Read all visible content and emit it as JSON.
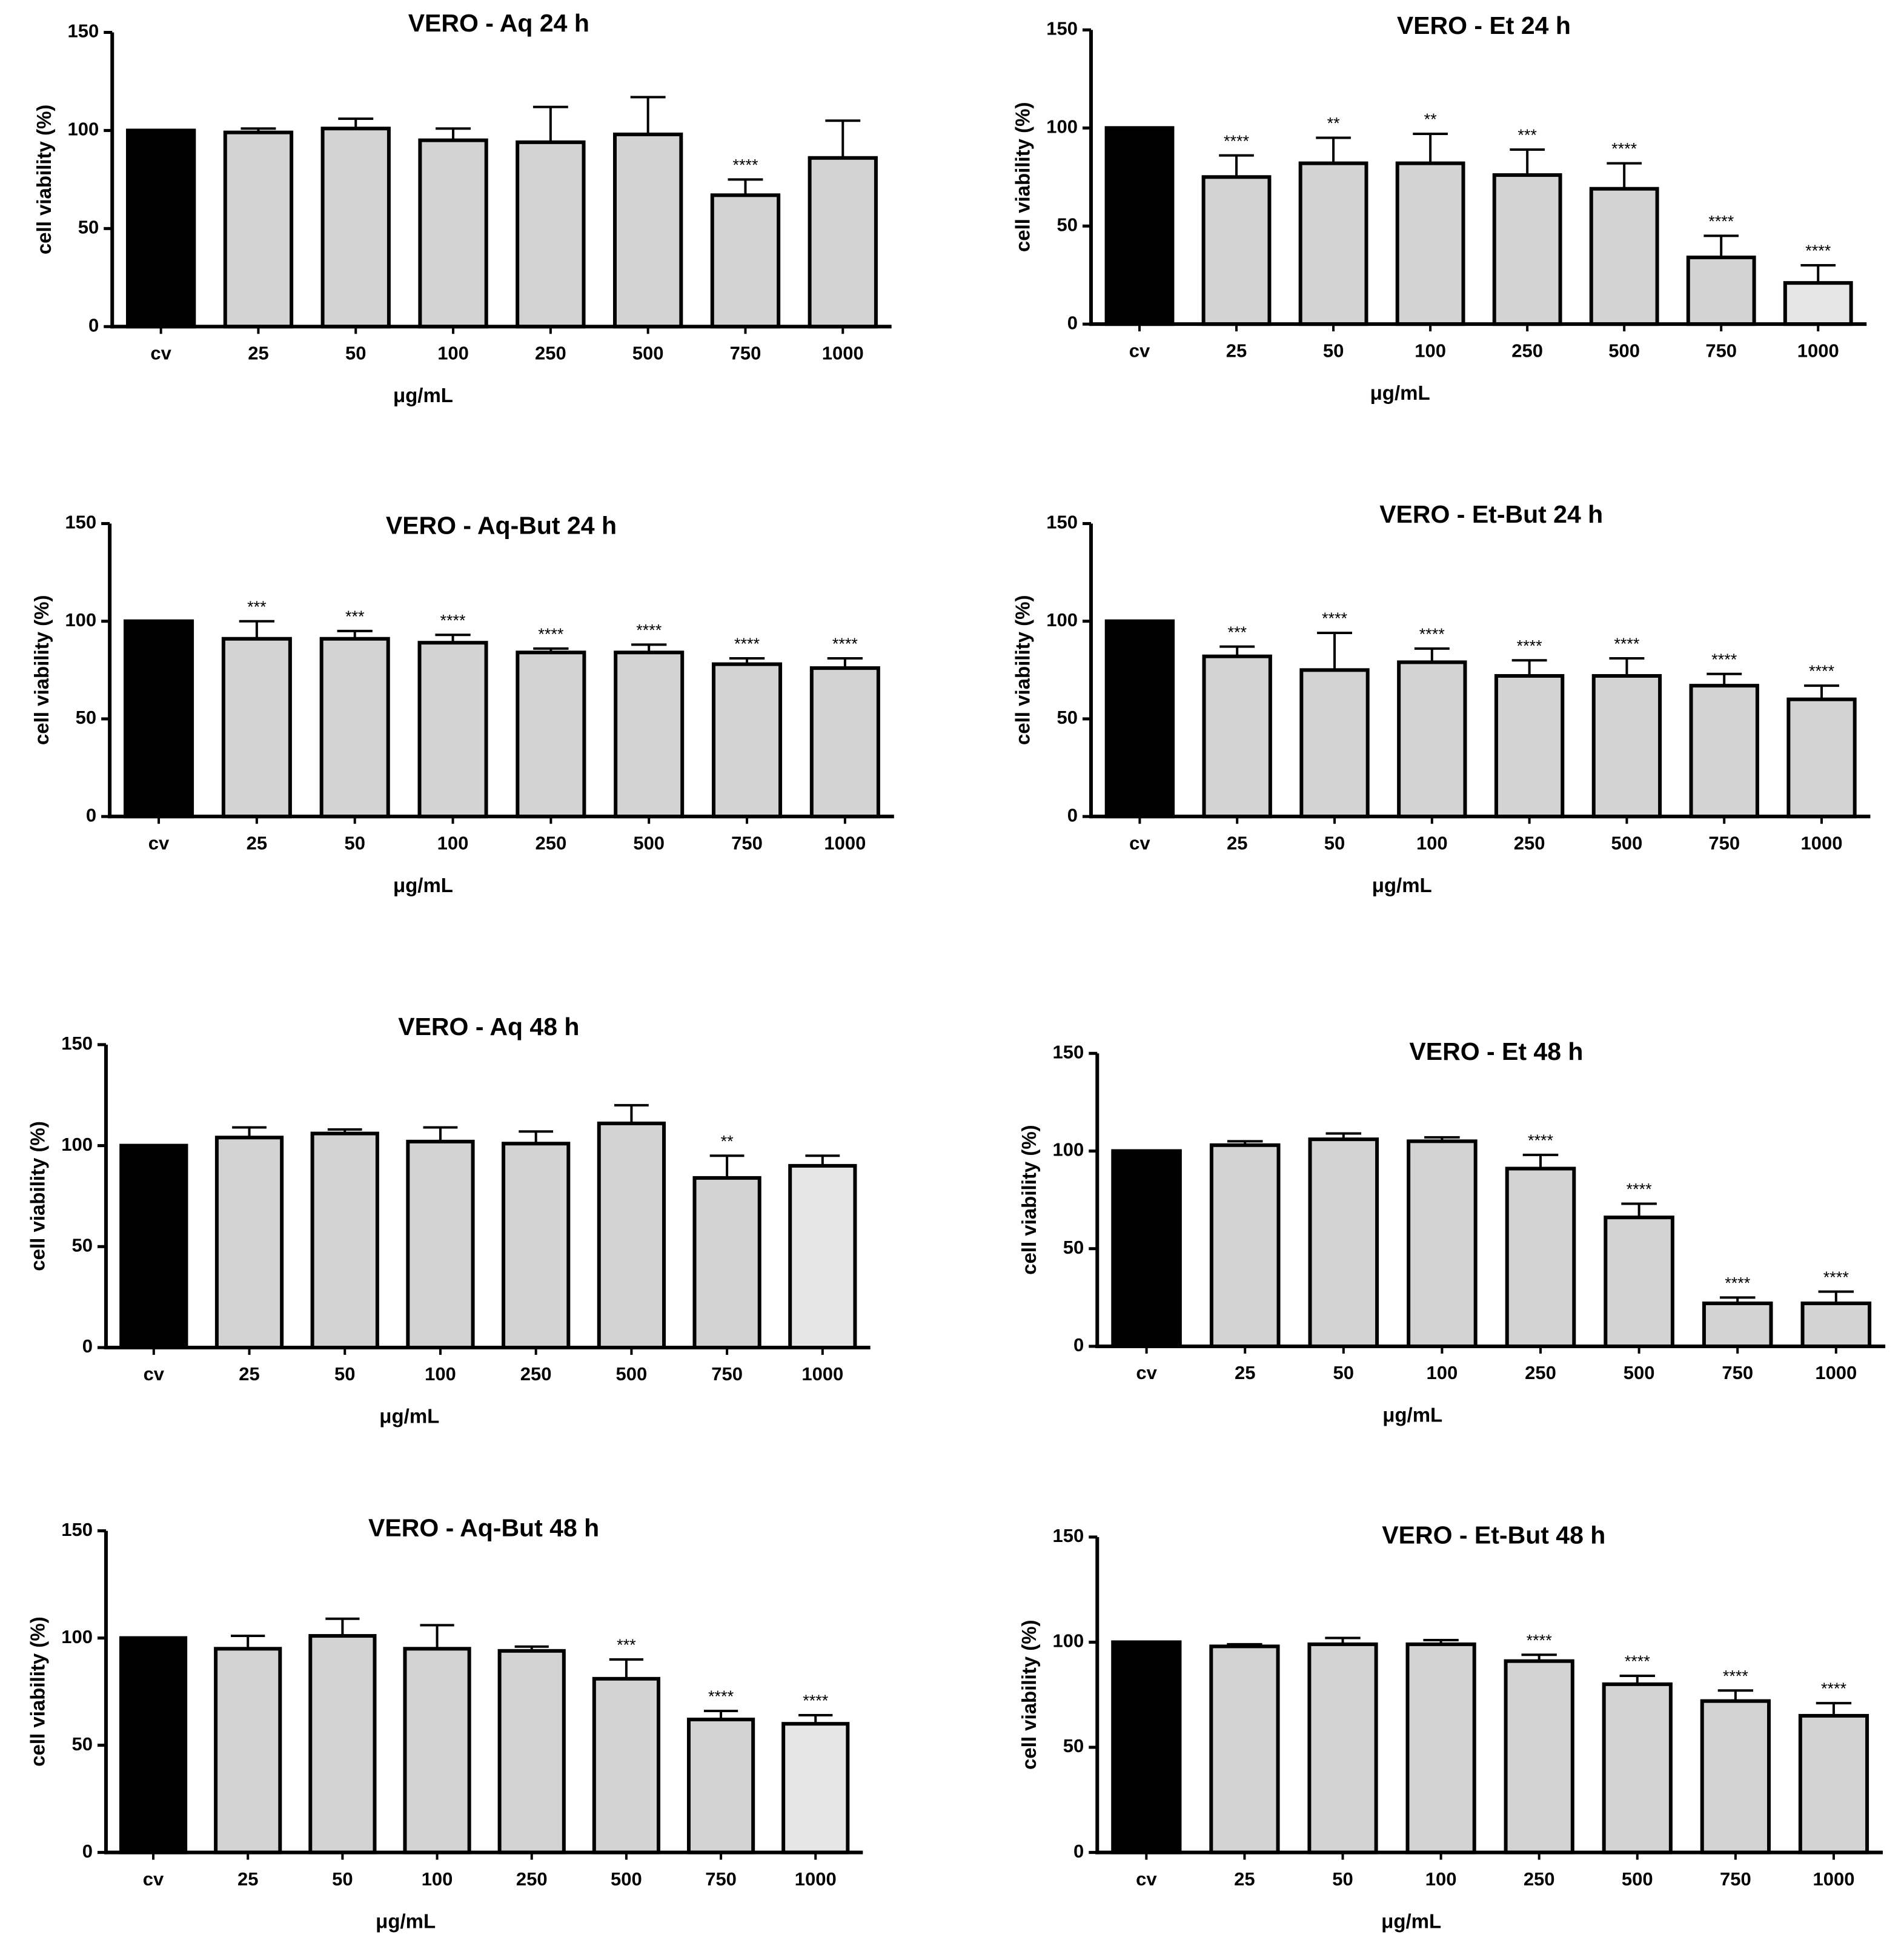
{
  "chart_data": [
    {
      "type": "bar",
      "title": "VERO -  Aq 24 h",
      "xlabel": "μg/mL",
      "ylabel": "cell viability (%)",
      "categories": [
        "cv",
        "25",
        "50",
        "100",
        "250",
        "500",
        "750",
        "1000"
      ],
      "values": [
        100,
        99,
        101,
        95,
        94,
        98,
        67,
        86
      ],
      "errors": [
        0,
        2,
        5,
        6,
        18,
        19,
        8,
        19
      ],
      "annotations": [
        null,
        null,
        null,
        null,
        null,
        null,
        "****",
        null
      ],
      "colors": [
        "#000000",
        "#d3d3d3",
        "#d3d3d3",
        "#d3d3d3",
        "#d3d3d3",
        "#d3d3d3",
        "#d3d3d3",
        "#d3d3d3"
      ],
      "ylim": [
        0,
        150
      ],
      "yticks": [
        0,
        50,
        100,
        150
      ]
    },
    {
      "type": "bar",
      "title": "VERO - Et 24 h",
      "xlabel": "μg/mL",
      "ylabel": "cell viability (%)",
      "categories": [
        "cv",
        "25",
        "50",
        "100",
        "250",
        "500",
        "750",
        "1000"
      ],
      "values": [
        100,
        75,
        82,
        82,
        76,
        69,
        34,
        21
      ],
      "errors": [
        0,
        11,
        13,
        15,
        13,
        13,
        11,
        9
      ],
      "annotations": [
        null,
        "****",
        "**",
        "**",
        "***",
        "****",
        "****",
        "****"
      ],
      "colors": [
        "#000000",
        "#d3d3d3",
        "#d3d3d3",
        "#d3d3d3",
        "#d3d3d3",
        "#d3d3d3",
        "#d3d3d3",
        "#e6e6e6"
      ],
      "ylim": [
        0,
        150
      ],
      "yticks": [
        0,
        50,
        100,
        150
      ]
    },
    {
      "type": "bar",
      "title": "VERO - Aq-But 24 h",
      "xlabel": "μg/mL",
      "ylabel": "cell viability (%)",
      "categories": [
        "cv",
        "25",
        "50",
        "100",
        "250",
        "500",
        "750",
        "1000"
      ],
      "values": [
        100,
        91,
        91,
        89,
        84,
        84,
        78,
        76
      ],
      "errors": [
        0,
        9,
        4,
        4,
        2,
        4,
        3,
        5
      ],
      "annotations": [
        null,
        "***",
        "***",
        "****",
        "****",
        "****",
        "****",
        "****"
      ],
      "colors": [
        "#000000",
        "#d3d3d3",
        "#d3d3d3",
        "#d3d3d3",
        "#d3d3d3",
        "#d3d3d3",
        "#d3d3d3",
        "#d3d3d3"
      ],
      "ylim": [
        0,
        150
      ],
      "yticks": [
        0,
        50,
        100,
        150
      ]
    },
    {
      "type": "bar",
      "title": "VERO - Et-But 24 h",
      "xlabel": "μg/mL",
      "ylabel": "cell viability (%)",
      "categories": [
        "cv",
        "25",
        "50",
        "100",
        "250",
        "500",
        "750",
        "1000"
      ],
      "values": [
        100,
        82,
        75,
        79,
        72,
        72,
        67,
        60
      ],
      "errors": [
        0,
        5,
        19,
        7,
        8,
        9,
        6,
        7
      ],
      "annotations": [
        null,
        "***",
        "****",
        "****",
        "****",
        "****",
        "****",
        "****"
      ],
      "colors": [
        "#000000",
        "#d3d3d3",
        "#d3d3d3",
        "#d3d3d3",
        "#d3d3d3",
        "#d3d3d3",
        "#d3d3d3",
        "#d3d3d3"
      ],
      "ylim": [
        0,
        150
      ],
      "yticks": [
        0,
        50,
        100,
        150
      ]
    },
    {
      "type": "bar",
      "title": "VERO - Aq 48 h",
      "xlabel": "μg/mL",
      "ylabel": "cell viability (%)",
      "categories": [
        "cv",
        "25",
        "50",
        "100",
        "250",
        "500",
        "750",
        "1000"
      ],
      "values": [
        100,
        104,
        106,
        102,
        101,
        111,
        84,
        90
      ],
      "errors": [
        0,
        5,
        2,
        7,
        6,
        9,
        11,
        5
      ],
      "annotations": [
        null,
        null,
        null,
        null,
        null,
        null,
        "**",
        null
      ],
      "colors": [
        "#000000",
        "#d3d3d3",
        "#d3d3d3",
        "#d3d3d3",
        "#d3d3d3",
        "#d3d3d3",
        "#d3d3d3",
        "#e6e6e6"
      ],
      "ylim": [
        0,
        150
      ],
      "yticks": [
        0,
        50,
        100,
        150
      ]
    },
    {
      "type": "bar",
      "title": "VERO - Et 48 h",
      "xlabel": "μg/mL",
      "ylabel": "cell viability (%)",
      "categories": [
        "cv",
        "25",
        "50",
        "100",
        "250",
        "500",
        "750",
        "1000"
      ],
      "values": [
        100,
        103,
        106,
        105,
        91,
        66,
        22,
        22
      ],
      "errors": [
        0,
        2,
        3,
        2,
        7,
        7,
        3,
        6
      ],
      "annotations": [
        null,
        null,
        null,
        null,
        "****",
        "****",
        "****",
        "****"
      ],
      "colors": [
        "#000000",
        "#d3d3d3",
        "#d3d3d3",
        "#d3d3d3",
        "#d3d3d3",
        "#d3d3d3",
        "#d3d3d3",
        "#d3d3d3"
      ],
      "ylim": [
        0,
        150
      ],
      "yticks": [
        0,
        50,
        100,
        150
      ]
    },
    {
      "type": "bar",
      "title": "VERO - Aq-But 48 h",
      "xlabel": "μg/mL",
      "ylabel": "cell viability (%)",
      "categories": [
        "cv",
        "25",
        "50",
        "100",
        "250",
        "500",
        "750",
        "1000"
      ],
      "values": [
        100,
        95,
        101,
        95,
        94,
        81,
        62,
        60
      ],
      "errors": [
        0,
        6,
        8,
        11,
        2,
        9,
        4,
        4
      ],
      "annotations": [
        null,
        null,
        null,
        null,
        null,
        "***",
        "****",
        "****"
      ],
      "colors": [
        "#000000",
        "#d3d3d3",
        "#d3d3d3",
        "#d3d3d3",
        "#d3d3d3",
        "#d3d3d3",
        "#d3d3d3",
        "#e6e6e6"
      ],
      "ylim": [
        0,
        150
      ],
      "yticks": [
        0,
        50,
        100,
        150
      ]
    },
    {
      "type": "bar",
      "title": "VERO - Et-But 48 h",
      "xlabel": "μg/mL",
      "ylabel": "cell viability (%)",
      "categories": [
        "cv",
        "25",
        "50",
        "100",
        "250",
        "500",
        "750",
        "1000"
      ],
      "values": [
        100,
        98,
        99,
        99,
        91,
        80,
        72,
        65
      ],
      "errors": [
        0,
        1,
        3,
        2,
        3,
        4,
        5,
        6
      ],
      "annotations": [
        null,
        null,
        null,
        null,
        "****",
        "****",
        "****",
        "****"
      ],
      "colors": [
        "#000000",
        "#d3d3d3",
        "#d3d3d3",
        "#d3d3d3",
        "#d3d3d3",
        "#d3d3d3",
        "#d3d3d3",
        "#d3d3d3"
      ],
      "ylim": [
        0,
        150
      ],
      "yticks": [
        0,
        50,
        100,
        150
      ]
    }
  ]
}
